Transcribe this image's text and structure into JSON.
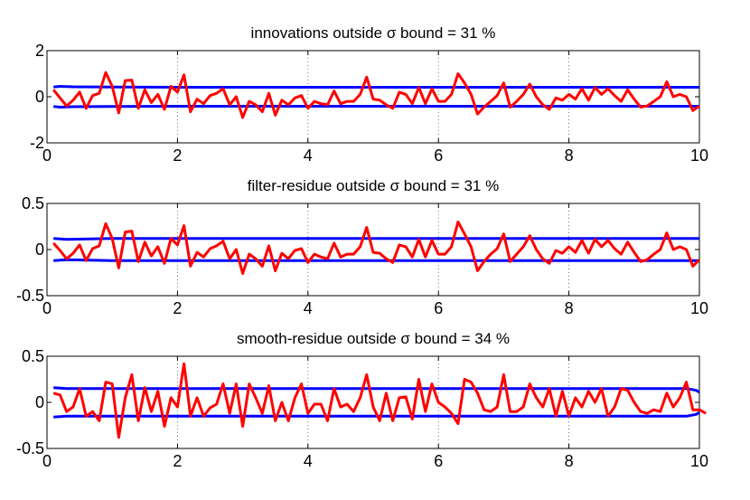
{
  "colors": {
    "series": "#ff0000",
    "bounds": "#0000ff",
    "grid": "#555555"
  },
  "chart_data": [
    {
      "type": "line",
      "title": "innovations outside σ bound = 31 %",
      "xlim": [
        0,
        10
      ],
      "ylim": [
        -2,
        2
      ],
      "xticks": [
        "0",
        "2",
        "4",
        "6",
        "8",
        "10"
      ],
      "yticks": [
        "-2",
        "0",
        "2"
      ],
      "ytick_values": [
        -2,
        0,
        2
      ],
      "grid": "x-only, dotted",
      "x_start": 0.1,
      "x_step": 0.1,
      "upper_bound": [
        [
          0.1,
          0.42
        ],
        [
          0.2,
          0.45
        ],
        [
          0.4,
          0.43
        ],
        [
          1,
          0.42
        ],
        [
          2,
          0.41
        ],
        [
          10,
          0.41
        ]
      ],
      "lower_bound": [
        [
          0.1,
          -0.42
        ],
        [
          0.2,
          -0.45
        ],
        [
          0.4,
          -0.43
        ],
        [
          1,
          -0.42
        ],
        [
          2,
          -0.41
        ],
        [
          10,
          -0.41
        ]
      ],
      "values": [
        0.3,
        -0.05,
        -0.4,
        -0.15,
        0.2,
        -0.5,
        0.05,
        0.15,
        1.05,
        0.45,
        -0.7,
        0.7,
        0.72,
        -0.5,
        0.3,
        -0.25,
        0.1,
        -0.55,
        0.45,
        0.2,
        0.95,
        -0.65,
        -0.1,
        -0.3,
        0.05,
        0.15,
        0.35,
        -0.35,
        0.0,
        -0.9,
        -0.2,
        -0.35,
        -0.65,
        0.15,
        -0.8,
        -0.15,
        -0.35,
        -0.05,
        0.05,
        -0.5,
        -0.2,
        -0.3,
        -0.35,
        0.25,
        -0.3,
        -0.2,
        -0.2,
        0.1,
        0.85,
        -0.1,
        -0.15,
        -0.35,
        -0.5,
        0.2,
        0.1,
        -0.3,
        0.4,
        -0.3,
        0.35,
        -0.2,
        -0.2,
        0.1,
        1.0,
        0.6,
        0.1,
        -0.75,
        -0.45,
        -0.2,
        0.05,
        0.6,
        -0.45,
        -0.2,
        0.1,
        0.55,
        0.0,
        -0.35,
        -0.55,
        -0.05,
        -0.15,
        0.1,
        -0.1,
        0.35,
        -0.15,
        0.4,
        0.1,
        0.35,
        0.05,
        -0.2,
        0.3,
        -0.1,
        -0.45,
        -0.4,
        -0.2,
        0.0,
        0.65,
        0.0,
        0.1,
        0.0,
        -0.6,
        -0.4
      ]
    },
    {
      "type": "line",
      "title": "filter-residue outside σ bound = 31 %",
      "xlim": [
        0,
        10
      ],
      "ylim": [
        -0.5,
        0.5
      ],
      "xticks": [
        "0",
        "2",
        "4",
        "6",
        "8",
        "10"
      ],
      "yticks": [
        "-0.5",
        "0",
        "0.5"
      ],
      "ytick_values": [
        -0.5,
        0,
        0.5
      ],
      "grid": "x-only, dotted",
      "x_start": 0.1,
      "x_step": 0.1,
      "upper_bound": [
        [
          0.1,
          0.12
        ],
        [
          0.3,
          0.11
        ],
        [
          1,
          0.12
        ],
        [
          3,
          0.12
        ],
        [
          10,
          0.12
        ]
      ],
      "lower_bound": [
        [
          0.1,
          -0.12
        ],
        [
          0.3,
          -0.11
        ],
        [
          1,
          -0.12
        ],
        [
          3,
          -0.12
        ],
        [
          10,
          -0.12
        ]
      ],
      "values": [
        0.07,
        -0.01,
        -0.1,
        -0.04,
        0.05,
        -0.12,
        0.01,
        0.04,
        0.28,
        0.12,
        -0.2,
        0.19,
        0.2,
        -0.13,
        0.08,
        -0.07,
        0.03,
        -0.15,
        0.12,
        0.05,
        0.26,
        -0.18,
        -0.03,
        -0.08,
        0.01,
        0.04,
        0.09,
        -0.1,
        0.0,
        -0.26,
        -0.05,
        -0.1,
        -0.18,
        0.04,
        -0.23,
        -0.04,
        -0.1,
        -0.01,
        0.01,
        -0.14,
        -0.05,
        -0.08,
        -0.1,
        0.07,
        -0.08,
        -0.05,
        -0.05,
        0.03,
        0.24,
        -0.03,
        -0.04,
        -0.1,
        -0.14,
        0.05,
        0.03,
        -0.08,
        0.11,
        -0.08,
        0.1,
        -0.05,
        -0.05,
        0.03,
        0.3,
        0.17,
        0.03,
        -0.23,
        -0.13,
        -0.05,
        0.01,
        0.17,
        -0.13,
        -0.05,
        0.03,
        0.15,
        0.0,
        -0.1,
        -0.15,
        -0.01,
        -0.04,
        0.03,
        -0.03,
        0.1,
        -0.04,
        0.11,
        0.03,
        0.1,
        0.01,
        -0.05,
        0.08,
        -0.03,
        -0.13,
        -0.11,
        -0.05,
        0.0,
        0.18,
        0.0,
        0.03,
        0.0,
        -0.18,
        -0.11
      ]
    },
    {
      "type": "line",
      "title": "smooth-residue outside σ bound = 34 %",
      "xlim": [
        0,
        10
      ],
      "ylim": [
        -0.5,
        0.5
      ],
      "xticks": [
        "0",
        "2",
        "4",
        "6",
        "8",
        "10"
      ],
      "yticks": [
        "-0.5",
        "0",
        "0.5"
      ],
      "ytick_values": [
        -0.5,
        0,
        0.5
      ],
      "grid": "x-only, dotted",
      "x_start": 0.1,
      "x_step": 0.1,
      "upper_bound": [
        [
          0.1,
          0.16
        ],
        [
          0.3,
          0.15
        ],
        [
          9,
          0.15
        ],
        [
          9.8,
          0.15
        ],
        [
          9.95,
          0.13
        ],
        [
          10,
          0.11
        ]
      ],
      "lower_bound": [
        [
          0.1,
          -0.16
        ],
        [
          0.3,
          -0.15
        ],
        [
          9,
          -0.15
        ],
        [
          9.8,
          -0.15
        ],
        [
          9.95,
          -0.13
        ],
        [
          10,
          -0.11
        ]
      ],
      "values": [
        0.1,
        0.08,
        -0.1,
        -0.05,
        0.15,
        -0.15,
        -0.1,
        -0.2,
        0.22,
        0.2,
        -0.38,
        0.05,
        0.3,
        -0.2,
        0.16,
        -0.1,
        0.12,
        -0.26,
        0.05,
        -0.05,
        0.42,
        -0.15,
        0.05,
        -0.15,
        -0.06,
        -0.02,
        0.2,
        -0.12,
        0.2,
        -0.26,
        0.2,
        0.05,
        -0.12,
        0.18,
        -0.2,
        0.0,
        -0.2,
        0.05,
        0.2,
        -0.12,
        -0.02,
        -0.02,
        -0.2,
        0.15,
        -0.05,
        -0.02,
        -0.1,
        0.05,
        0.3,
        -0.05,
        -0.2,
        0.1,
        -0.2,
        0.05,
        0.06,
        -0.18,
        0.25,
        -0.1,
        0.2,
        0.0,
        -0.05,
        -0.12,
        -0.23,
        0.25,
        0.22,
        0.1,
        -0.08,
        -0.1,
        -0.05,
        0.3,
        -0.1,
        -0.1,
        -0.05,
        0.2,
        0.05,
        -0.05,
        0.15,
        -0.15,
        0.12,
        -0.15,
        0.05,
        -0.05,
        0.12,
        0.0,
        0.15,
        -0.15,
        -0.05,
        0.15,
        0.13,
        0.0,
        -0.1,
        -0.12,
        -0.08,
        -0.1,
        0.1,
        -0.05,
        0.05,
        0.22,
        -0.08,
        -0.08,
        -0.12
      ]
    }
  ]
}
